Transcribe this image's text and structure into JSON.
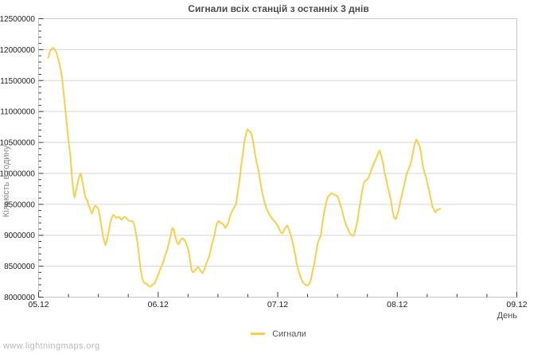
{
  "footer": {
    "watermark": "www.lightningmaps.org"
  },
  "chart_data": {
    "type": "line",
    "title": "Сигнали всіх станцій з останніх 3 днів",
    "xlabel": "День",
    "ylabel": "Кількість в годину",
    "legend": [
      {
        "label": "Сигнали",
        "color": "#f7cf4b"
      }
    ],
    "grid": "horizontal",
    "legend_position": "bottom-center",
    "x_tick_labels": [
      "05.12",
      "06.12",
      "07.12",
      "08.12",
      "09.12"
    ],
    "x_range_days": [
      0,
      4
    ],
    "x_minor_per_major": 4,
    "ylim": [
      8000000,
      12500000
    ],
    "y_tick_step": 500000,
    "y_minor_step": 100000,
    "colors": {
      "line": "#f7cf4b",
      "grid": "#d6d6d6",
      "frame": "#c9c9c9",
      "tick": "#3a3a3a",
      "tick_label": "#222222",
      "title": "#4d4d4d"
    },
    "series": [
      {
        "name": "Сигнали",
        "points": [
          [
            0.08,
            11870000
          ],
          [
            0.093,
            11960000
          ],
          [
            0.107,
            12010000
          ],
          [
            0.12,
            12030000
          ],
          [
            0.133,
            12010000
          ],
          [
            0.147,
            11960000
          ],
          [
            0.16,
            11880000
          ],
          [
            0.173,
            11780000
          ],
          [
            0.187,
            11650000
          ],
          [
            0.2,
            11490000
          ],
          [
            0.213,
            11240000
          ],
          [
            0.227,
            10980000
          ],
          [
            0.24,
            10710000
          ],
          [
            0.253,
            10490000
          ],
          [
            0.267,
            10260000
          ],
          [
            0.28,
            9910000
          ],
          [
            0.293,
            9690000
          ],
          [
            0.3,
            9610000
          ],
          [
            0.313,
            9720000
          ],
          [
            0.327,
            9840000
          ],
          [
            0.34,
            9950000
          ],
          [
            0.353,
            10000000
          ],
          [
            0.367,
            9870000
          ],
          [
            0.38,
            9720000
          ],
          [
            0.393,
            9610000
          ],
          [
            0.407,
            9560000
          ],
          [
            0.42,
            9480000
          ],
          [
            0.433,
            9410000
          ],
          [
            0.447,
            9350000
          ],
          [
            0.46,
            9430000
          ],
          [
            0.473,
            9480000
          ],
          [
            0.487,
            9460000
          ],
          [
            0.5,
            9430000
          ],
          [
            0.513,
            9300000
          ],
          [
            0.527,
            9130000
          ],
          [
            0.54,
            8970000
          ],
          [
            0.56,
            8840000
          ],
          [
            0.573,
            8940000
          ],
          [
            0.587,
            9070000
          ],
          [
            0.6,
            9200000
          ],
          [
            0.613,
            9290000
          ],
          [
            0.627,
            9330000
          ],
          [
            0.64,
            9300000
          ],
          [
            0.653,
            9280000
          ],
          [
            0.667,
            9300000
          ],
          [
            0.68,
            9280000
          ],
          [
            0.693,
            9250000
          ],
          [
            0.707,
            9280000
          ],
          [
            0.72,
            9300000
          ],
          [
            0.733,
            9280000
          ],
          [
            0.747,
            9250000
          ],
          [
            0.76,
            9230000
          ],
          [
            0.773,
            9230000
          ],
          [
            0.787,
            9230000
          ],
          [
            0.8,
            9170000
          ],
          [
            0.813,
            9040000
          ],
          [
            0.827,
            8880000
          ],
          [
            0.84,
            8680000
          ],
          [
            0.853,
            8450000
          ],
          [
            0.867,
            8300000
          ],
          [
            0.88,
            8240000
          ],
          [
            0.893,
            8220000
          ],
          [
            0.907,
            8210000
          ],
          [
            0.92,
            8180000
          ],
          [
            0.933,
            8170000
          ],
          [
            0.947,
            8190000
          ],
          [
            0.96,
            8210000
          ],
          [
            0.973,
            8230000
          ],
          [
            0.987,
            8300000
          ],
          [
            1.0,
            8360000
          ],
          [
            1.013,
            8430000
          ],
          [
            1.027,
            8490000
          ],
          [
            1.04,
            8550000
          ],
          [
            1.053,
            8640000
          ],
          [
            1.067,
            8720000
          ],
          [
            1.08,
            8790000
          ],
          [
            1.093,
            8900000
          ],
          [
            1.107,
            9020000
          ],
          [
            1.12,
            9120000
          ],
          [
            1.133,
            9080000
          ],
          [
            1.147,
            8950000
          ],
          [
            1.16,
            8870000
          ],
          [
            1.173,
            8860000
          ],
          [
            1.187,
            8920000
          ],
          [
            1.2,
            8950000
          ],
          [
            1.213,
            8940000
          ],
          [
            1.227,
            8900000
          ],
          [
            1.24,
            8840000
          ],
          [
            1.253,
            8760000
          ],
          [
            1.267,
            8600000
          ],
          [
            1.28,
            8430000
          ],
          [
            1.293,
            8400000
          ],
          [
            1.307,
            8430000
          ],
          [
            1.32,
            8460000
          ],
          [
            1.333,
            8490000
          ],
          [
            1.347,
            8450000
          ],
          [
            1.36,
            8410000
          ],
          [
            1.373,
            8390000
          ],
          [
            1.387,
            8450000
          ],
          [
            1.4,
            8530000
          ],
          [
            1.413,
            8590000
          ],
          [
            1.427,
            8660000
          ],
          [
            1.44,
            8770000
          ],
          [
            1.453,
            8880000
          ],
          [
            1.467,
            8970000
          ],
          [
            1.48,
            9100000
          ],
          [
            1.493,
            9200000
          ],
          [
            1.507,
            9230000
          ],
          [
            1.52,
            9200000
          ],
          [
            1.533,
            9200000
          ],
          [
            1.547,
            9170000
          ],
          [
            1.56,
            9120000
          ],
          [
            1.573,
            9150000
          ],
          [
            1.587,
            9200000
          ],
          [
            1.6,
            9300000
          ],
          [
            1.613,
            9370000
          ],
          [
            1.627,
            9420000
          ],
          [
            1.64,
            9460000
          ],
          [
            1.653,
            9520000
          ],
          [
            1.667,
            9720000
          ],
          [
            1.68,
            9880000
          ],
          [
            1.693,
            10100000
          ],
          [
            1.707,
            10300000
          ],
          [
            1.72,
            10490000
          ],
          [
            1.733,
            10620000
          ],
          [
            1.747,
            10710000
          ],
          [
            1.76,
            10690000
          ],
          [
            1.773,
            10670000
          ],
          [
            1.787,
            10590000
          ],
          [
            1.8,
            10450000
          ],
          [
            1.813,
            10280000
          ],
          [
            1.827,
            10150000
          ],
          [
            1.84,
            10050000
          ],
          [
            1.853,
            9870000
          ],
          [
            1.867,
            9720000
          ],
          [
            1.88,
            9610000
          ],
          [
            1.893,
            9510000
          ],
          [
            1.907,
            9430000
          ],
          [
            1.92,
            9380000
          ],
          [
            1.933,
            9330000
          ],
          [
            1.947,
            9290000
          ],
          [
            1.96,
            9250000
          ],
          [
            1.973,
            9230000
          ],
          [
            1.987,
            9190000
          ],
          [
            2.0,
            9160000
          ],
          [
            2.013,
            9100000
          ],
          [
            2.027,
            9040000
          ],
          [
            2.04,
            9030000
          ],
          [
            2.053,
            9080000
          ],
          [
            2.067,
            9130000
          ],
          [
            2.08,
            9160000
          ],
          [
            2.093,
            9100000
          ],
          [
            2.107,
            9010000
          ],
          [
            2.12,
            8930000
          ],
          [
            2.133,
            8810000
          ],
          [
            2.147,
            8680000
          ],
          [
            2.16,
            8540000
          ],
          [
            2.173,
            8430000
          ],
          [
            2.187,
            8350000
          ],
          [
            2.2,
            8280000
          ],
          [
            2.213,
            8230000
          ],
          [
            2.227,
            8210000
          ],
          [
            2.24,
            8190000
          ],
          [
            2.253,
            8190000
          ],
          [
            2.267,
            8220000
          ],
          [
            2.28,
            8300000
          ],
          [
            2.293,
            8430000
          ],
          [
            2.307,
            8550000
          ],
          [
            2.32,
            8710000
          ],
          [
            2.333,
            8850000
          ],
          [
            2.347,
            8940000
          ],
          [
            2.36,
            8990000
          ],
          [
            2.373,
            9170000
          ],
          [
            2.387,
            9350000
          ],
          [
            2.4,
            9480000
          ],
          [
            2.413,
            9590000
          ],
          [
            2.427,
            9640000
          ],
          [
            2.44,
            9660000
          ],
          [
            2.453,
            9680000
          ],
          [
            2.467,
            9660000
          ],
          [
            2.48,
            9650000
          ],
          [
            2.493,
            9640000
          ],
          [
            2.507,
            9600000
          ],
          [
            2.52,
            9520000
          ],
          [
            2.533,
            9440000
          ],
          [
            2.547,
            9330000
          ],
          [
            2.56,
            9240000
          ],
          [
            2.573,
            9160000
          ],
          [
            2.587,
            9110000
          ],
          [
            2.6,
            9040000
          ],
          [
            2.613,
            9010000
          ],
          [
            2.627,
            8990000
          ],
          [
            2.64,
            9020000
          ],
          [
            2.653,
            9110000
          ],
          [
            2.667,
            9230000
          ],
          [
            2.68,
            9410000
          ],
          [
            2.693,
            9550000
          ],
          [
            2.707,
            9720000
          ],
          [
            2.72,
            9840000
          ],
          [
            2.733,
            9880000
          ],
          [
            2.747,
            9900000
          ],
          [
            2.76,
            9930000
          ],
          [
            2.773,
            10000000
          ],
          [
            2.787,
            10080000
          ],
          [
            2.8,
            10140000
          ],
          [
            2.813,
            10200000
          ],
          [
            2.827,
            10260000
          ],
          [
            2.84,
            10330000
          ],
          [
            2.853,
            10370000
          ],
          [
            2.867,
            10270000
          ],
          [
            2.88,
            10180000
          ],
          [
            2.893,
            10020000
          ],
          [
            2.907,
            9900000
          ],
          [
            2.92,
            9790000
          ],
          [
            2.933,
            9680000
          ],
          [
            2.947,
            9570000
          ],
          [
            2.96,
            9400000
          ],
          [
            2.973,
            9290000
          ],
          [
            2.987,
            9260000
          ],
          [
            3.0,
            9330000
          ],
          [
            3.013,
            9420000
          ],
          [
            3.027,
            9560000
          ],
          [
            3.04,
            9660000
          ],
          [
            3.053,
            9770000
          ],
          [
            3.067,
            9890000
          ],
          [
            3.08,
            10000000
          ],
          [
            3.093,
            10060000
          ],
          [
            3.107,
            10130000
          ],
          [
            3.12,
            10220000
          ],
          [
            3.133,
            10350000
          ],
          [
            3.147,
            10480000
          ],
          [
            3.16,
            10550000
          ],
          [
            3.173,
            10500000
          ],
          [
            3.187,
            10440000
          ],
          [
            3.2,
            10320000
          ],
          [
            3.213,
            10130000
          ],
          [
            3.227,
            10010000
          ],
          [
            3.24,
            9950000
          ],
          [
            3.253,
            9820000
          ],
          [
            3.267,
            9720000
          ],
          [
            3.28,
            9590000
          ],
          [
            3.293,
            9470000
          ],
          [
            3.307,
            9410000
          ],
          [
            3.32,
            9370000
          ],
          [
            3.333,
            9410000
          ],
          [
            3.347,
            9420000
          ],
          [
            3.36,
            9430000
          ]
        ]
      }
    ]
  }
}
